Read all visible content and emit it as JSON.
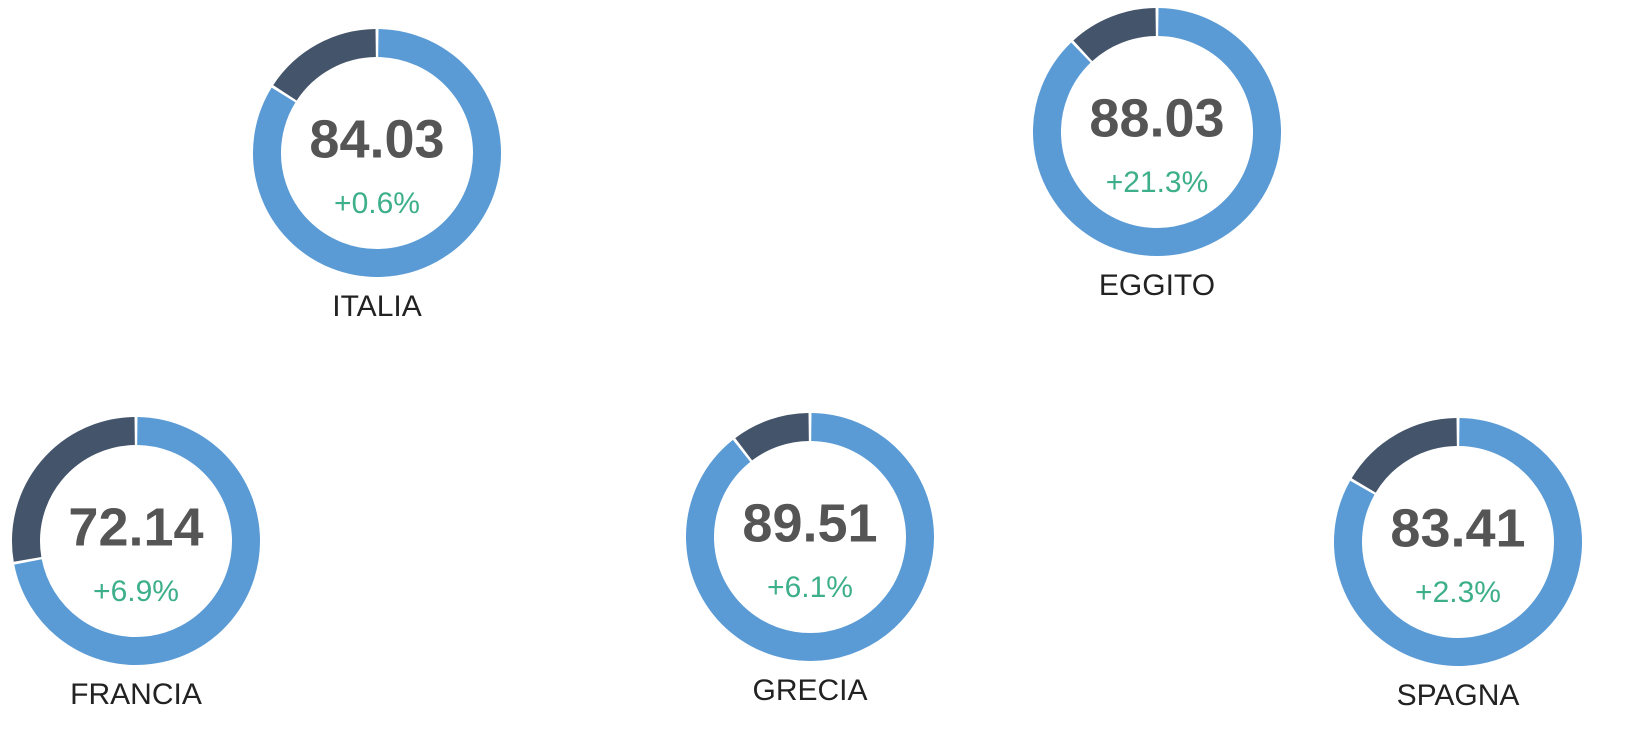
{
  "chart_data": [
    {
      "type": "donut",
      "title": "ITALIA",
      "values": [
        84.03
      ],
      "ylim": [
        0,
        100
      ],
      "delta": {
        "value": 0.6,
        "label": "+0.6%"
      },
      "color": "#5b9bd5",
      "rest_color": "#44546a"
    },
    {
      "type": "donut",
      "title": "EGGITO",
      "values": [
        88.03
      ],
      "ylim": [
        0,
        100
      ],
      "delta": {
        "value": 21.3,
        "label": "+21.3%"
      },
      "color": "#5b9bd5",
      "rest_color": "#44546a"
    },
    {
      "type": "donut",
      "title": "FRANCIA",
      "values": [
        72.14
      ],
      "ylim": [
        0,
        100
      ],
      "delta": {
        "value": 6.9,
        "label": "+6.9%"
      },
      "color": "#5b9bd5",
      "rest_color": "#44546a"
    },
    {
      "type": "donut",
      "title": "GRECIA",
      "values": [
        89.51
      ],
      "ylim": [
        0,
        100
      ],
      "delta": {
        "value": 6.1,
        "label": "+6.1%"
      },
      "color": "#5b9bd5",
      "rest_color": "#44546a"
    },
    {
      "type": "donut",
      "title": "SPAGNA",
      "values": [
        83.41
      ],
      "ylim": [
        0,
        100
      ],
      "delta": {
        "value": 2.3,
        "label": "+2.3%"
      },
      "color": "#5b9bd5",
      "rest_color": "#44546a"
    }
  ]
}
